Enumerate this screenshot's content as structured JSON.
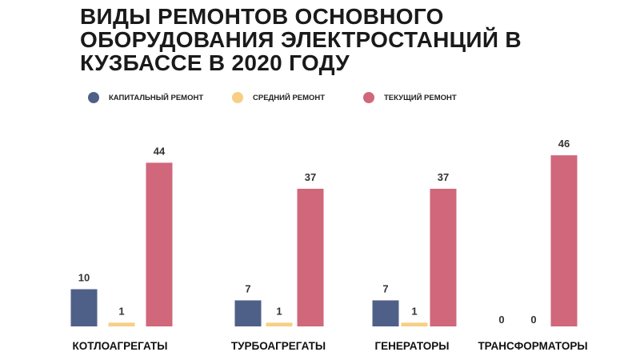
{
  "chart_data": {
    "type": "bar",
    "title": "ВИДЫ РЕМОНТОВ ОСНОВНОГО\nОБОРУДОВАНИЯ ЭЛЕКТРОСТАНЦИЙ В\nКУЗБАССЕ В 2020 ГОДУ",
    "categories": [
      "КОТЛОАГРЕГАТЫ",
      "ТУРБОАГРЕГАТЫ",
      "ГЕНЕРАТОРЫ",
      "ТРАНСФОРМАТОРЫ"
    ],
    "series": [
      {
        "name": "КАПИТАЛЬНЫЙ РЕМОНТ",
        "color": "#4f6088",
        "values": [
          10,
          7,
          7,
          0
        ]
      },
      {
        "name": "СРЕДНИЙ РЕМОНТ",
        "color": "#f7cf83",
        "values": [
          1,
          1,
          1,
          0
        ]
      },
      {
        "name": "ТЕКУЩИЙ РЕМОНТ",
        "color": "#d0677a",
        "values": [
          44,
          37,
          37,
          46
        ]
      }
    ],
    "legend_position": "top",
    "grid": false,
    "axes_visible": false
  }
}
